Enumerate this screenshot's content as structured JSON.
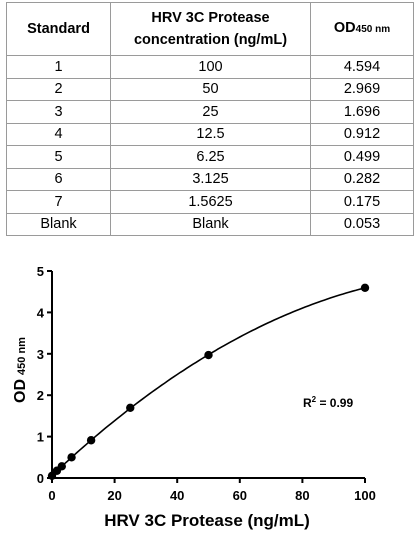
{
  "table": {
    "headers": {
      "standard": "Standard",
      "concentration_line1": "HRV 3C Protease",
      "concentration_line2": "concentration (ng/mL)",
      "od_main": "OD",
      "od_sub": "450 nm"
    },
    "rows": [
      {
        "standard": "1",
        "concentration": "100",
        "od": "4.594"
      },
      {
        "standard": "2",
        "concentration": "50",
        "od": "2.969"
      },
      {
        "standard": "3",
        "concentration": "25",
        "od": "1.696"
      },
      {
        "standard": "4",
        "concentration": "12.5",
        "od": "0.912"
      },
      {
        "standard": "5",
        "concentration": "6.25",
        "od": "0.499"
      },
      {
        "standard": "6",
        "concentration": "3.125",
        "od": "0.282"
      },
      {
        "standard": "7",
        "concentration": "1.5625",
        "od": "0.175"
      },
      {
        "standard": "Blank",
        "concentration": "Blank",
        "od": "0.053"
      }
    ]
  },
  "chart_data": {
    "type": "scatter",
    "x": [
      0,
      1.5625,
      3.125,
      6.25,
      12.5,
      25,
      50,
      100
    ],
    "y": [
      0.053,
      0.175,
      0.282,
      0.499,
      0.912,
      1.696,
      2.969,
      4.594
    ],
    "xlabel": "HRV 3C Protease (ng/mL)",
    "ylabel_main": "OD",
    "ylabel_sub": "450 nm",
    "xlim": [
      0,
      100
    ],
    "ylim": [
      0,
      5
    ],
    "xticks": [
      "0",
      "20",
      "40",
      "60",
      "80",
      "100"
    ],
    "yticks": [
      "0",
      "1",
      "2",
      "3",
      "4",
      "5"
    ],
    "annotation_main": "R",
    "annotation_sup": "2",
    "annotation_rest": " = 0.99",
    "fit": "polynomial curve",
    "grid": false,
    "marker_color": "#000000"
  }
}
